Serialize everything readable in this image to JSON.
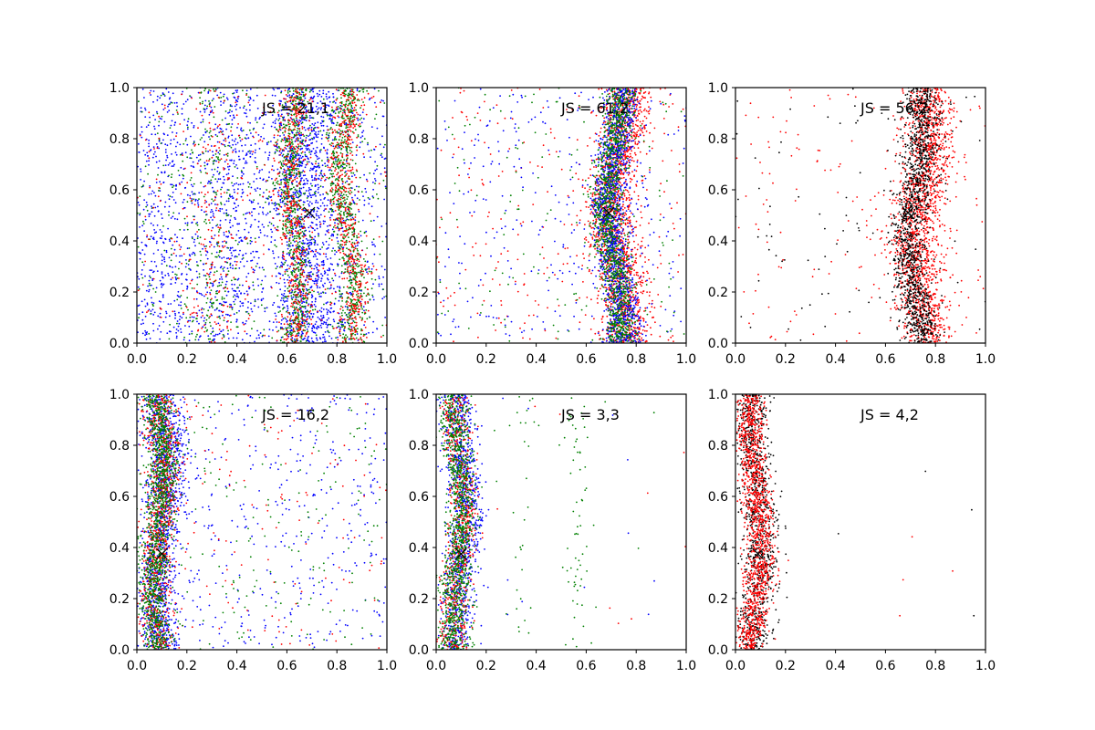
{
  "chart_data": [
    {
      "type": "scatter",
      "annotation": "JS = 21,1",
      "xlim": [
        0,
        1
      ],
      "ylim": [
        0,
        1
      ],
      "xticks": [
        "0.0",
        "0.2",
        "0.4",
        "0.6",
        "0.8",
        "1.0"
      ],
      "yticks": [
        "0.0",
        "0.2",
        "0.4",
        "0.6",
        "0.8",
        "1.0"
      ],
      "marker": {
        "x": 0.69,
        "y": 0.51,
        "symbol": "x"
      },
      "series": [
        {
          "color": "#0000ff",
          "bands": [
            {
              "center": 0.68,
              "width": 0.07,
              "amp": 0.02,
              "count": 1100
            }
          ],
          "background_count": 1000,
          "clusters": [
            {
              "center": 0.38,
              "width": 0.07,
              "count": 350
            },
            {
              "center": 0.1,
              "width": 0.06,
              "count": 250
            }
          ]
        },
        {
          "color": "#008000",
          "bands": [
            {
              "center": 0.63,
              "width": 0.03,
              "amp": 0.02,
              "count": 700
            },
            {
              "center": 0.84,
              "width": 0.03,
              "amp": 0.03,
              "count": 700
            }
          ],
          "background_count": 350,
          "clusters": [
            {
              "center": 0.3,
              "width": 0.05,
              "count": 200
            }
          ]
        },
        {
          "color": "#ff0000",
          "bands": [
            {
              "center": 0.63,
              "width": 0.03,
              "amp": 0.02,
              "count": 500
            },
            {
              "center": 0.84,
              "width": 0.03,
              "amp": 0.03,
              "count": 500
            }
          ],
          "background_count": 250,
          "clusters": [
            {
              "center": 0.3,
              "width": 0.05,
              "count": 150
            }
          ]
        }
      ]
    },
    {
      "type": "scatter",
      "annotation": "JS = 61,2",
      "xlim": [
        0,
        1
      ],
      "ylim": [
        0,
        1
      ],
      "xticks": [
        "0.0",
        "0.2",
        "0.4",
        "0.6",
        "0.8",
        "1.0"
      ],
      "yticks": [
        "0.0",
        "0.2",
        "0.4",
        "0.6",
        "0.8",
        "1.0"
      ],
      "marker": {
        "x": 0.69,
        "y": 0.51,
        "symbol": "x"
      },
      "series": [
        {
          "color": "#ff0000",
          "bands": [
            {
              "center": 0.73,
              "width": 0.05,
              "amp": 0.03,
              "count": 1700
            }
          ],
          "background_count": 250,
          "clusters": []
        },
        {
          "color": "#0000ff",
          "bands": [
            {
              "center": 0.72,
              "width": 0.035,
              "amp": 0.03,
              "count": 1400
            }
          ],
          "background_count": 300,
          "clusters": []
        },
        {
          "color": "#008000",
          "bands": [
            {
              "center": 0.71,
              "width": 0.03,
              "amp": 0.03,
              "count": 1200
            }
          ],
          "background_count": 150,
          "clusters": []
        }
      ]
    },
    {
      "type": "scatter",
      "annotation": "JS = 56,2",
      "xlim": [
        0,
        1
      ],
      "ylim": [
        0,
        1
      ],
      "xticks": [
        "0.0",
        "0.2",
        "0.4",
        "0.6",
        "0.8",
        "1.0"
      ],
      "yticks": [
        "0.0",
        "0.2",
        "0.4",
        "0.6",
        "0.8",
        "1.0"
      ],
      "marker": {
        "x": 0.69,
        "y": 0.51,
        "symbol": "x"
      },
      "series": [
        {
          "color": "#ff0000",
          "bands": [
            {
              "center": 0.75,
              "width": 0.05,
              "amp": 0.03,
              "count": 1600
            }
          ],
          "background_count": 170,
          "clusters": []
        },
        {
          "color": "#000000",
          "bands": [
            {
              "center": 0.72,
              "width": 0.035,
              "amp": 0.03,
              "count": 1300
            }
          ],
          "background_count": 100,
          "clusters": []
        }
      ]
    },
    {
      "type": "scatter",
      "annotation": "JS = 16,2",
      "xlim": [
        0,
        1
      ],
      "ylim": [
        0,
        1
      ],
      "xticks": [
        "0.0",
        "0.2",
        "0.4",
        "0.6",
        "0.8",
        "1.0"
      ],
      "yticks": [
        "0.0",
        "0.2",
        "0.4",
        "0.6",
        "0.8",
        "1.0"
      ],
      "marker": {
        "x": 0.1,
        "y": 0.375,
        "symbol": "x"
      },
      "series": [
        {
          "color": "#0000ff",
          "bands": [
            {
              "center": 0.1,
              "width": 0.04,
              "amp": 0.02,
              "count": 1200
            }
          ],
          "background_count": 450,
          "clusters": []
        },
        {
          "color": "#ff0000",
          "bands": [
            {
              "center": 0.09,
              "width": 0.03,
              "amp": 0.02,
              "count": 900
            }
          ],
          "background_count": 150,
          "clusters": []
        },
        {
          "color": "#008000",
          "bands": [
            {
              "center": 0.085,
              "width": 0.03,
              "amp": 0.02,
              "count": 1200
            }
          ],
          "background_count": 200,
          "clusters": []
        }
      ]
    },
    {
      "type": "scatter",
      "annotation": "JS = 3,3",
      "xlim": [
        0,
        1
      ],
      "ylim": [
        0,
        1
      ],
      "xticks": [
        "0.0",
        "0.2",
        "0.4",
        "0.6",
        "0.8",
        "1.0"
      ],
      "yticks": [
        "0.0",
        "0.2",
        "0.4",
        "0.6",
        "0.8",
        "1.0"
      ],
      "marker": {
        "x": 0.1,
        "y": 0.375,
        "symbol": "x"
      },
      "series": [
        {
          "color": "#0000ff",
          "bands": [
            {
              "center": 0.1,
              "width": 0.035,
              "amp": 0.02,
              "count": 1000
            }
          ],
          "background_count": 15,
          "clusters": []
        },
        {
          "color": "#ff0000",
          "bands": [
            {
              "center": 0.09,
              "width": 0.03,
              "amp": 0.02,
              "count": 700
            }
          ],
          "background_count": 10,
          "clusters": []
        },
        {
          "color": "#008000",
          "bands": [
            {
              "center": 0.085,
              "width": 0.03,
              "amp": 0.02,
              "count": 1100
            }
          ],
          "background_count": 20,
          "clusters": [
            {
              "center": 0.35,
              "width": 0.02,
              "count": 25
            },
            {
              "center": 0.57,
              "width": 0.025,
              "count": 60
            }
          ]
        }
      ]
    },
    {
      "type": "scatter",
      "annotation": "JS = 4,2",
      "xlim": [
        0,
        1
      ],
      "ylim": [
        0,
        1
      ],
      "xticks": [
        "0.0",
        "0.2",
        "0.4",
        "0.6",
        "0.8",
        "1.0"
      ],
      "yticks": [
        "0.0",
        "0.2",
        "0.4",
        "0.6",
        "0.8",
        "1.0"
      ],
      "marker": {
        "x": 0.09,
        "y": 0.375,
        "symbol": "x"
      },
      "series": [
        {
          "color": "#000000",
          "bands": [
            {
              "center": 0.085,
              "width": 0.035,
              "amp": 0.02,
              "count": 1000
            }
          ],
          "background_count": 5,
          "clusters": []
        },
        {
          "color": "#ff0000",
          "bands": [
            {
              "center": 0.08,
              "width": 0.03,
              "amp": 0.02,
              "count": 1300
            }
          ],
          "background_count": 5,
          "clusters": []
        }
      ]
    }
  ]
}
